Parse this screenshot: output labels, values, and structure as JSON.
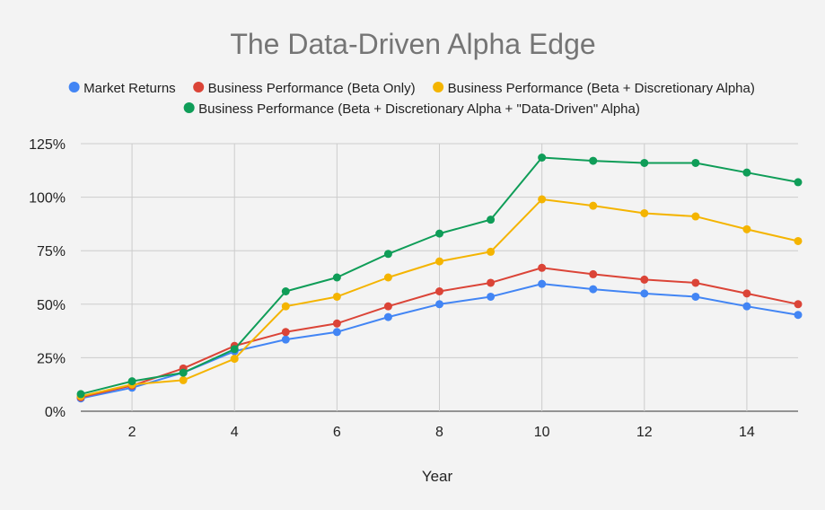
{
  "chart_data": {
    "type": "line",
    "title": "The Data-Driven Alpha Edge",
    "xlabel": "Year",
    "ylabel": "",
    "xlim": [
      1,
      15
    ],
    "ylim": [
      0,
      1.25
    ],
    "x": [
      1,
      2,
      3,
      4,
      5,
      6,
      7,
      8,
      9,
      10,
      11,
      12,
      13,
      14,
      15
    ],
    "x_ticks": [
      2,
      4,
      6,
      8,
      10,
      12,
      14
    ],
    "x_tick_labels": [
      "2",
      "4",
      "6",
      "8",
      "10",
      "12",
      "14"
    ],
    "y_ticks": [
      0,
      0.25,
      0.5,
      0.75,
      1.0,
      1.25
    ],
    "y_tick_labels": [
      "0%",
      "25%",
      "50%",
      "75%",
      "100%",
      "125%"
    ],
    "grid": true,
    "legend_position": "top",
    "series": [
      {
        "name": "Market Returns",
        "color": "#4285f4",
        "values": [
          0.06,
          0.11,
          0.18,
          0.28,
          0.335,
          0.37,
          0.44,
          0.5,
          0.535,
          0.595,
          0.57,
          0.55,
          0.535,
          0.49,
          0.45
        ]
      },
      {
        "name": "Business Performance (Beta Only)",
        "color": "#db4437",
        "values": [
          0.065,
          0.12,
          0.2,
          0.305,
          0.37,
          0.41,
          0.49,
          0.56,
          0.6,
          0.67,
          0.64,
          0.615,
          0.6,
          0.55,
          0.5
        ]
      },
      {
        "name": "Business Performance (Beta + Discretionary Alpha)",
        "color": "#f4b400",
        "values": [
          0.07,
          0.125,
          0.145,
          0.245,
          0.49,
          0.535,
          0.625,
          0.7,
          0.745,
          0.99,
          0.96,
          0.925,
          0.91,
          0.85,
          0.795
        ]
      },
      {
        "name": "Business Performance (Beta + Discretionary Alpha + \"Data-Driven\" Alpha)",
        "color": "#0f9d58",
        "values": [
          0.08,
          0.14,
          0.18,
          0.29,
          0.56,
          0.625,
          0.735,
          0.83,
          0.895,
          1.185,
          1.17,
          1.16,
          1.16,
          1.115,
          1.07
        ]
      }
    ]
  }
}
